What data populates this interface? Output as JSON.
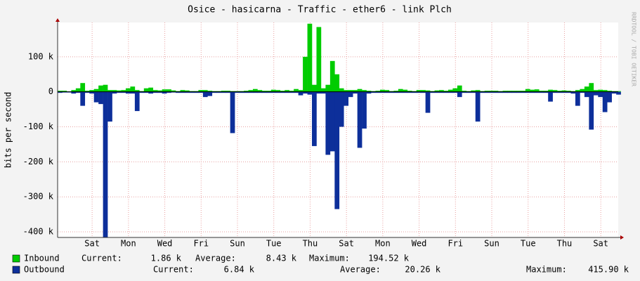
{
  "chart_data": {
    "type": "bar",
    "title": "Osice - hasicarna - Traffic - ether6 - link Plch",
    "y_label": "bits per second",
    "watermark": "RRDTOOL / TOBI OETIKER",
    "xlim": [
      0,
      30.86
    ],
    "xticks": [
      {
        "value": 1.9,
        "label": "Sat"
      },
      {
        "value": 3.9,
        "label": "Mon"
      },
      {
        "value": 5.9,
        "label": "Wed"
      },
      {
        "value": 7.9,
        "label": "Fri"
      },
      {
        "value": 9.9,
        "label": "Sun"
      },
      {
        "value": 11.9,
        "label": "Tue"
      },
      {
        "value": 13.9,
        "label": "Thu"
      },
      {
        "value": 15.9,
        "label": "Sat"
      },
      {
        "value": 17.9,
        "label": "Mon"
      },
      {
        "value": 19.9,
        "label": "Wed"
      },
      {
        "value": 21.9,
        "label": "Fri"
      },
      {
        "value": 23.9,
        "label": "Sun"
      },
      {
        "value": 25.9,
        "label": "Tue"
      },
      {
        "value": 27.9,
        "label": "Thu"
      },
      {
        "value": 29.9,
        "label": "Sat"
      }
    ],
    "ylim": [
      -416000,
      198000
    ],
    "yticks": [
      {
        "value": -400000,
        "label": "-400 k"
      },
      {
        "value": -300000,
        "label": "-300 k"
      },
      {
        "value": -200000,
        "label": "-200 k"
      },
      {
        "value": -100000,
        "label": "-100 k"
      },
      0,
      {
        "value": 100000,
        "label": "100 k"
      }
    ],
    "grid": true,
    "x": [
      0,
      0.25,
      0.5,
      0.75,
      1,
      1.25,
      1.5,
      1.75,
      2,
      2.25,
      2.5,
      2.75,
      3,
      3.25,
      3.5,
      3.75,
      4,
      4.25,
      4.5,
      4.75,
      5,
      5.25,
      5.5,
      5.75,
      6,
      6.25,
      6.5,
      6.75,
      7,
      7.25,
      7.5,
      7.75,
      8,
      8.25,
      8.5,
      8.75,
      9,
      9.25,
      9.5,
      9.75,
      10,
      10.25,
      10.5,
      10.75,
      11,
      11.25,
      11.5,
      11.75,
      12,
      12.25,
      12.5,
      12.75,
      13,
      13.25,
      13.5,
      13.75,
      14,
      14.25,
      14.5,
      14.75,
      15,
      15.25,
      15.5,
      15.75,
      16,
      16.25,
      16.5,
      16.75,
      17,
      17.25,
      17.5,
      17.75,
      18,
      18.25,
      18.5,
      18.75,
      19,
      19.25,
      19.5,
      19.75,
      20,
      20.25,
      20.5,
      20.75,
      21,
      21.25,
      21.5,
      21.75,
      22,
      22.25,
      22.5,
      22.75,
      23,
      23.25,
      23.5,
      23.75,
      24,
      24.25,
      24.5,
      24.75,
      25,
      25.25,
      25.5,
      25.75,
      26,
      26.25,
      26.5,
      26.75,
      27,
      27.25,
      27.5,
      27.75,
      28,
      28.25,
      28.5,
      28.75,
      29,
      29.25,
      29.5,
      29.75,
      30,
      30.25,
      30.5,
      30.75
    ],
    "series": [
      {
        "name": "Inbound",
        "color": "#00cc00",
        "stats": [
          {
            "label": "Current:",
            "value": "1.86 k"
          },
          {
            "label": "Average:",
            "value": "8.43 k"
          },
          {
            "label": "Maximum:",
            "value": "194.52 k"
          }
        ],
        "values": [
          3000,
          3000,
          1000,
          5000,
          10000,
          25000,
          3000,
          5000,
          8000,
          18000,
          20000,
          5000,
          5000,
          4000,
          5000,
          10000,
          15000,
          5000,
          2000,
          10000,
          12000,
          5000,
          4000,
          7000,
          7000,
          4000,
          2000,
          5000,
          4000,
          2000,
          2000,
          5000,
          5000,
          3000,
          2000,
          2000,
          3000,
          3000,
          2000,
          2000,
          2000,
          3000,
          5000,
          8000,
          5000,
          3000,
          3000,
          6000,
          5000,
          3000,
          5000,
          3000,
          8000,
          5000,
          100000,
          194520,
          20000,
          185000,
          10000,
          20000,
          88000,
          50000,
          10000,
          5000,
          5000,
          5000,
          8000,
          5000,
          3000,
          2000,
          3000,
          6000,
          5000,
          2000,
          3000,
          8000,
          6000,
          3000,
          2000,
          5000,
          5000,
          4000,
          2000,
          4000,
          5000,
          3000,
          6000,
          10000,
          18000,
          3000,
          2000,
          4000,
          5000,
          2000,
          3000,
          3000,
          3000,
          2000,
          3000,
          3000,
          3000,
          3000,
          3000,
          8000,
          6000,
          7000,
          3000,
          3000,
          6000,
          5000,
          3000,
          4000,
          3000,
          2000,
          5000,
          8000,
          15000,
          25000,
          5000,
          6000,
          5000,
          3000,
          2000,
          2000
        ]
      },
      {
        "name": "Outbound",
        "color": "#0d2f9a",
        "stats": [
          {
            "label": "Current:",
            "value": "6.84 k"
          },
          {
            "label": "Average:",
            "value": "20.26 k"
          },
          {
            "label": "Maximum:",
            "value": "415.90 k"
          }
        ],
        "values": [
          -3000,
          -2000,
          -2000,
          -5000,
          -3000,
          -40000,
          -3000,
          -5000,
          -30000,
          -35000,
          -415900,
          -85000,
          -5000,
          -3000,
          -3000,
          -5000,
          -5000,
          -55000,
          -3000,
          -3000,
          -5000,
          -3000,
          -3000,
          -5000,
          -3000,
          -2000,
          -3000,
          -3000,
          -3000,
          -3000,
          -3000,
          -3000,
          -15000,
          -12000,
          -3000,
          -3000,
          -3000,
          -3000,
          -118000,
          -3000,
          -3000,
          -3000,
          -3000,
          -3000,
          -3000,
          -3000,
          -3000,
          -3000,
          -3000,
          -3000,
          -3000,
          -3000,
          -3000,
          -10000,
          -5000,
          -8000,
          -155000,
          -5000,
          -5000,
          -180000,
          -170000,
          -335000,
          -100000,
          -40000,
          -15000,
          -5000,
          -160000,
          -105000,
          -5000,
          -3000,
          -3000,
          -3000,
          -3000,
          -3000,
          -3000,
          -3000,
          -3000,
          -3000,
          -3000,
          -3000,
          -3000,
          -60000,
          -3000,
          -3000,
          -3000,
          -3000,
          -3000,
          -3000,
          -15000,
          -3000,
          -3000,
          -3000,
          -85000,
          -3000,
          -3000,
          -3000,
          -3000,
          -3000,
          -3000,
          -3000,
          -3000,
          -3000,
          -3000,
          -3000,
          -3000,
          -3000,
          -3000,
          -3000,
          -28000,
          -3000,
          -3000,
          -3000,
          -3000,
          -5000,
          -40000,
          -3000,
          -15000,
          -108000,
          -10000,
          -15000,
          -58000,
          -30000,
          -5000,
          -8000
        ]
      }
    ]
  }
}
